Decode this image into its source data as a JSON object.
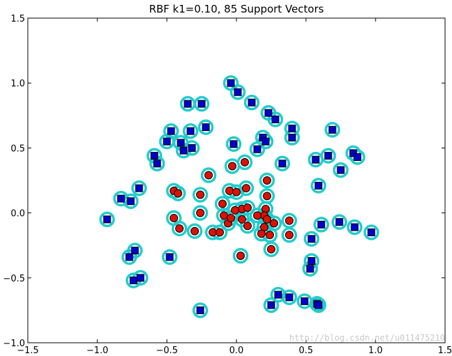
{
  "chart_data": {
    "type": "scatter",
    "title": "RBF k1=0.10, 85 Support Vectors",
    "xlim": [
      -1.5,
      1.5
    ],
    "ylim": [
      -1.0,
      1.5
    ],
    "xticks": [
      -1.5,
      -1.0,
      -0.5,
      0.0,
      0.5,
      1.0,
      1.5
    ],
    "yticks": [
      -1.0,
      -0.5,
      0.0,
      0.5,
      1.0,
      1.5
    ],
    "xtick_labels": [
      "−1.5",
      "−1.0",
      "−0.5",
      "0.0",
      "0.5",
      "1.0",
      "1.5"
    ],
    "ytick_labels": [
      "−1.0",
      "−0.5",
      "0.0",
      "0.5",
      "1.0",
      "1.5"
    ],
    "grid": false,
    "colors": {
      "class_neg_fill": "#0000cc",
      "class_pos_fill": "#dd1100",
      "support_ring": "#22cccc",
      "marker_edge": "#000000"
    },
    "series": [
      {
        "marker": "square",
        "points": [
          [
            -0.04,
            1.0
          ],
          [
            0.01,
            0.93
          ],
          [
            0.11,
            0.85
          ],
          [
            0.23,
            0.77
          ],
          [
            0.28,
            0.72
          ],
          [
            -0.35,
            0.84
          ],
          [
            -0.25,
            0.84
          ],
          [
            -0.47,
            0.63
          ],
          [
            -0.33,
            0.63
          ],
          [
            -0.22,
            0.66
          ],
          [
            -0.5,
            0.55
          ],
          [
            -0.4,
            0.54
          ],
          [
            -0.38,
            0.48
          ],
          [
            -0.32,
            0.5
          ],
          [
            -0.59,
            0.44
          ],
          [
            -0.57,
            0.38
          ],
          [
            -0.02,
            0.53
          ],
          [
            0.15,
            0.49
          ],
          [
            0.19,
            0.58
          ],
          [
            0.21,
            0.55
          ],
          [
            0.33,
            0.38
          ],
          [
            0.4,
            0.65
          ],
          [
            0.4,
            0.58
          ],
          [
            0.57,
            0.41
          ],
          [
            0.66,
            0.44
          ],
          [
            0.69,
            0.64
          ],
          [
            0.75,
            0.33
          ],
          [
            0.84,
            0.46
          ],
          [
            0.87,
            0.43
          ],
          [
            0.59,
            0.21
          ],
          [
            -0.7,
            0.19
          ],
          [
            -0.83,
            0.11
          ],
          [
            -0.76,
            0.09
          ],
          [
            -0.93,
            -0.05
          ],
          [
            0.61,
            -0.09
          ],
          [
            0.74,
            -0.07
          ],
          [
            0.85,
            -0.11
          ],
          [
            0.97,
            -0.15
          ],
          [
            0.54,
            -0.2
          ],
          [
            0.54,
            -0.37
          ],
          [
            0.53,
            -0.43
          ],
          [
            -0.73,
            -0.29
          ],
          [
            -0.77,
            -0.34
          ],
          [
            -0.48,
            -0.34
          ],
          [
            -0.74,
            -0.52
          ],
          [
            -0.69,
            -0.5
          ],
          [
            -0.26,
            -0.75
          ],
          [
            0.3,
            -0.63
          ],
          [
            0.38,
            -0.65
          ],
          [
            0.49,
            -0.68
          ],
          [
            0.58,
            -0.7
          ],
          [
            0.59,
            -0.71
          ],
          [
            0.25,
            -0.71
          ]
        ]
      },
      {
        "marker": "circle",
        "points": [
          [
            -0.2,
            0.29
          ],
          [
            -0.03,
            0.36
          ],
          [
            0.06,
            0.39
          ],
          [
            0.22,
            0.25
          ],
          [
            -0.45,
            0.17
          ],
          [
            -0.42,
            0.15
          ],
          [
            -0.26,
            0.14
          ],
          [
            -0.05,
            0.17
          ],
          [
            0.0,
            0.16
          ],
          [
            0.07,
            0.19
          ],
          [
            0.22,
            0.13
          ],
          [
            -0.1,
            0.07
          ],
          [
            -0.26,
            0.0
          ],
          [
            -0.45,
            -0.04
          ],
          [
            -0.41,
            -0.12
          ],
          [
            -0.3,
            -0.14
          ],
          [
            -0.17,
            -0.15
          ],
          [
            -0.12,
            -0.15
          ],
          [
            -0.09,
            -0.02
          ],
          [
            0.04,
            0.03
          ],
          [
            0.08,
            0.04
          ],
          [
            0.21,
            0.03
          ],
          [
            0.2,
            -0.02
          ],
          [
            0.22,
            -0.05
          ],
          [
            -0.06,
            -0.08
          ],
          [
            0.04,
            -0.05
          ],
          [
            0.08,
            -0.1
          ],
          [
            0.2,
            -0.11
          ],
          [
            0.27,
            -0.08
          ],
          [
            0.38,
            -0.06
          ],
          [
            0.18,
            -0.16
          ],
          [
            0.24,
            -0.17
          ],
          [
            0.38,
            -0.17
          ],
          [
            0.25,
            -0.28
          ],
          [
            0.03,
            -0.33
          ],
          [
            -0.01,
            0.02
          ],
          [
            0.15,
            -0.02
          ],
          [
            -0.04,
            -0.04
          ]
        ]
      }
    ]
  },
  "watermark": "http://blog.csdn.net/u011475210"
}
